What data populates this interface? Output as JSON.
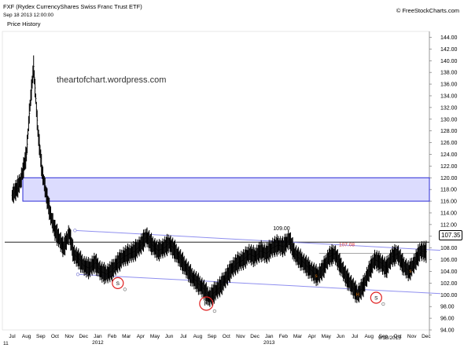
{
  "header": {
    "symbol_title": "FXF (Rydex CurrencyShares Swiss Franc Trust ETF)",
    "date_line": "Sep 18 2013 12:00:00",
    "panel_label": "Price History",
    "brand": "© FreeStockCharts.com",
    "watermark": "theartofchart.wordpress.com",
    "footer_date": "9/18/2013",
    "bottom_left_mark": "11"
  },
  "chart_data": {
    "type": "line",
    "title": "FXF (Rydex CurrencyShares Swiss Franc Trust ETF)",
    "ylim": [
      94,
      145
    ],
    "y_ticks": [
      94,
      96,
      98,
      100,
      102,
      104,
      106,
      108,
      110,
      112,
      114,
      116,
      118,
      120,
      122,
      124,
      126,
      128,
      130,
      132,
      134,
      136,
      138,
      140,
      142,
      144
    ],
    "y_tick_labels": [
      "94.00",
      "96.00",
      "98.00",
      "100.00",
      "102.00",
      "104.00",
      "106.00",
      "108.00",
      "110.00",
      "112.00",
      "114.00",
      "116.00",
      "118.00",
      "120.00",
      "122.00",
      "124.00",
      "126.00",
      "128.00",
      "130.00",
      "132.00",
      "134.00",
      "136.00",
      "138.00",
      "140.00",
      "142.00",
      "144.00"
    ],
    "x_months": [
      "Jul",
      "Aug",
      "Sep",
      "Oct",
      "Nov",
      "Dec",
      "Jan",
      "Feb",
      "Mar",
      "Apr",
      "May",
      "Jun",
      "Jul",
      "Aug",
      "Sep",
      "Oct",
      "Nov",
      "Dec",
      "Jan",
      "Feb",
      "Mar",
      "Apr",
      "May",
      "Jun",
      "Jul",
      "Aug",
      "Sep",
      "Oct",
      "Nov",
      "Dec"
    ],
    "x_years": [
      "2012",
      "2013"
    ],
    "last_price": "107.35",
    "horizontal_level": {
      "value": 109.0,
      "label": "109.00"
    },
    "resistance_level": {
      "value": 107.08,
      "label": "107.08"
    },
    "zone": {
      "low": 116.0,
      "high": 120.0
    },
    "colors": {
      "price": "#000000",
      "trendline": "#8f8fef",
      "zone_fill": "#dcdcfe",
      "zone_border": "#2b2bd6",
      "annot_red": "#e02020",
      "annot_orange": "#e07a10",
      "level_label": "#e03030"
    },
    "annotations": [
      {
        "label": "S",
        "month": 7.4,
        "price": 102.0
      },
      {
        "label": "H",
        "month": 13.6,
        "price": 98.5
      },
      {
        "label": "S",
        "month": 25.5,
        "price": 99.5
      }
    ],
    "small_marks": [
      {
        "label": "s",
        "month": 21.3,
        "price": 103.0
      },
      {
        "label": "H",
        "month": 24.2,
        "price": 99.8
      },
      {
        "label": "s",
        "month": 27.9,
        "price": 103.8
      }
    ],
    "series": [
      {
        "months": [
          0.0,
          0.3,
          0.6,
          1.0,
          1.2,
          1.5,
          1.8,
          2.1,
          2.4,
          2.7,
          3.0,
          3.3,
          3.6,
          4.0,
          4.3,
          4.7,
          5.0,
          5.4,
          5.8,
          6.2,
          6.6,
          7.0,
          7.4,
          7.8,
          8.2,
          8.6,
          9.0,
          9.4,
          9.8,
          10.2,
          10.6,
          11.0,
          11.4,
          11.8,
          12.2,
          12.6,
          13.0,
          13.4,
          13.8,
          14.2,
          14.6,
          15.0,
          15.4,
          15.8,
          16.2,
          16.6,
          17.0,
          17.4,
          17.8,
          18.2,
          18.6,
          19.0,
          19.4,
          19.8,
          20.2,
          20.6,
          21.0,
          21.4,
          21.8,
          22.2,
          22.6,
          23.0,
          23.4,
          23.8,
          24.2,
          24.6,
          25.0,
          25.4,
          25.8,
          26.2,
          26.6,
          27.0,
          27.4,
          27.8,
          28.2,
          28.6,
          29.0
        ],
        "close": [
          117.0,
          118.0,
          119.5,
          124.0,
          131.0,
          139.0,
          128.0,
          121.0,
          117.0,
          113.5,
          111.0,
          109.5,
          108.0,
          110.5,
          107.0,
          106.0,
          105.0,
          104.5,
          105.5,
          104.0,
          103.5,
          104.2,
          105.5,
          106.5,
          107.0,
          107.5,
          108.5,
          110.0,
          108.5,
          107.5,
          108.0,
          108.8,
          107.5,
          106.0,
          104.5,
          103.0,
          102.0,
          101.0,
          99.5,
          100.5,
          101.5,
          103.0,
          104.5,
          105.5,
          106.0,
          107.0,
          106.5,
          107.5,
          107.0,
          108.0,
          108.5,
          108.2,
          109.5,
          107.0,
          106.0,
          105.0,
          104.0,
          103.2,
          104.5,
          106.5,
          107.0,
          105.0,
          103.0,
          101.5,
          100.0,
          101.5,
          104.0,
          106.0,
          105.5,
          104.5,
          106.5,
          107.0,
          105.0,
          104.0,
          105.5,
          107.5,
          107.35
        ]
      }
    ],
    "trendlines": [
      {
        "name": "upper",
        "from": {
          "month": 4.4,
          "price": 111.0
        },
        "to": {
          "month": 30.0,
          "price": 107.6
        }
      },
      {
        "name": "lower",
        "from": {
          "month": 4.6,
          "price": 103.5
        },
        "to": {
          "month": 30.0,
          "price": 100.2
        }
      },
      {
        "name": "level",
        "from": {
          "month": 21.5,
          "price": 107.08
        },
        "to": {
          "month": 28.8,
          "price": 107.08
        }
      }
    ]
  }
}
